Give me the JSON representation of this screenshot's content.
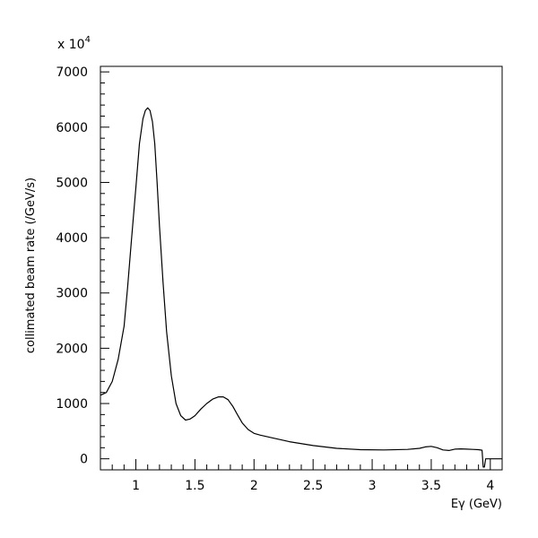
{
  "chart_data": {
    "type": "line",
    "title": "",
    "xlabel": "Eγ (GeV)",
    "ylabel": "collimated beam rate (/GeV/s)",
    "y_multiplier": "x 10",
    "y_multiplier_exponent": "4",
    "xlim": [
      0.7,
      4.1
    ],
    "ylim": [
      -200,
      7100
    ],
    "grid": false,
    "x_ticks": [
      1,
      1.5,
      2,
      2.5,
      3,
      3.5,
      4
    ],
    "x_tick_labels": [
      "1",
      "1.5",
      "2",
      "2.5",
      "3",
      "3.5",
      "4"
    ],
    "y_ticks": [
      0,
      1000,
      2000,
      3000,
      4000,
      5000,
      6000,
      7000
    ],
    "y_tick_labels": [
      "0",
      "1000",
      "2000",
      "3000",
      "4000",
      "5000",
      "6000",
      "7000"
    ],
    "line_color": "#000000",
    "series": [
      {
        "x": [
          0.7,
          0.75,
          0.8,
          0.85,
          0.9,
          0.93,
          0.96,
          1.0,
          1.03,
          1.06,
          1.08,
          1.1,
          1.12,
          1.14,
          1.16,
          1.18,
          1.2,
          1.23,
          1.26,
          1.3,
          1.34,
          1.38,
          1.42,
          1.46,
          1.5,
          1.55,
          1.6,
          1.65,
          1.7,
          1.74,
          1.78,
          1.82,
          1.86,
          1.9,
          1.95,
          2.0,
          2.05,
          2.15,
          2.3,
          2.5,
          2.7,
          2.9,
          3.1,
          3.3,
          3.4,
          3.45,
          3.5,
          3.55,
          3.6,
          3.65,
          3.7,
          3.75,
          3.8,
          3.85,
          3.9,
          3.93,
          3.94,
          3.95,
          3.96,
          4.1
        ],
        "y": [
          1150,
          1200,
          1400,
          1800,
          2400,
          3100,
          3900,
          4900,
          5700,
          6150,
          6300,
          6350,
          6300,
          6100,
          5700,
          5000,
          4200,
          3200,
          2300,
          1500,
          1000,
          780,
          700,
          720,
          780,
          900,
          1000,
          1080,
          1120,
          1120,
          1070,
          950,
          800,
          650,
          530,
          460,
          430,
          380,
          310,
          240,
          190,
          165,
          160,
          170,
          190,
          215,
          225,
          200,
          160,
          150,
          175,
          180,
          175,
          170,
          165,
          155,
          -150,
          -150,
          0,
          0
        ]
      }
    ]
  }
}
